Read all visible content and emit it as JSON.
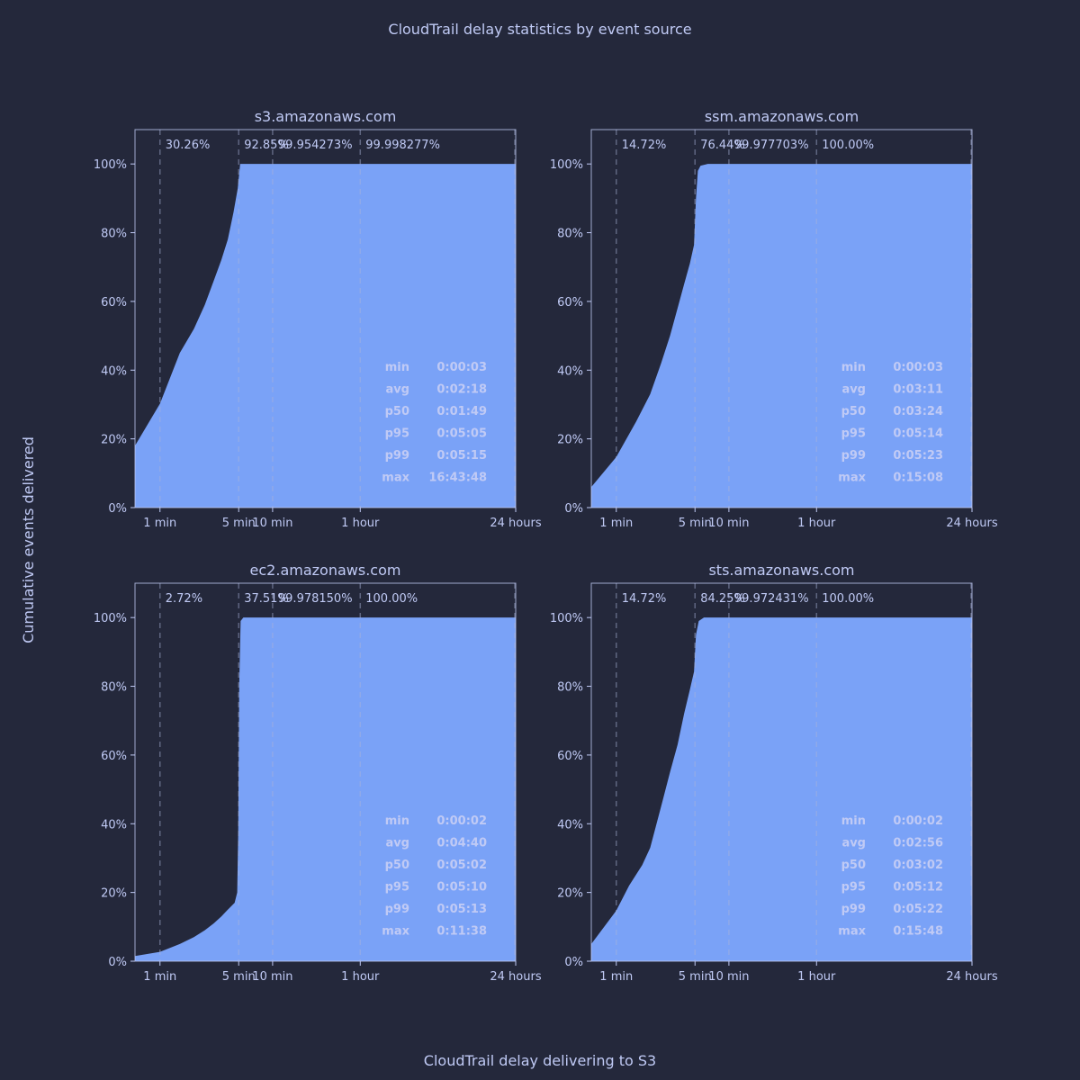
{
  "title": "CloudTrail delay statistics by event source",
  "xlabel": "CloudTrail delay delivering to S3",
  "ylabel": "Cumulative events delivered",
  "colors": {
    "background": "#24283b",
    "fill": "#7aa2f7",
    "text": "#c0caf5",
    "frame": "#c0caf5"
  },
  "chart_data": [
    {
      "type": "area",
      "title": "s3.amazonaws.com",
      "x_ticks": [
        "1 min",
        "5 min",
        "10 min",
        "1 hour",
        "24 hours"
      ],
      "y_ticks": [
        "0%",
        "20%",
        "40%",
        "60%",
        "80%",
        "100%"
      ],
      "ylim": [
        0,
        110
      ],
      "x_log_minutes": true,
      "threshold_minutes": [
        1,
        5,
        10,
        60
      ],
      "threshold_labels": [
        "30.26%",
        "92.85%",
        "99.954273%",
        "99.998277%"
      ],
      "curve": [
        [
          0.05,
          0
        ],
        [
          0.2,
          8
        ],
        [
          0.5,
          18
        ],
        [
          1,
          30.26
        ],
        [
          1.5,
          45
        ],
        [
          2,
          52
        ],
        [
          2.5,
          59
        ],
        [
          3,
          66
        ],
        [
          3.5,
          72
        ],
        [
          4,
          78
        ],
        [
          4.5,
          86
        ],
        [
          4.9,
          92.85
        ],
        [
          5.15,
          100
        ],
        [
          60,
          100
        ],
        [
          1440,
          100
        ]
      ],
      "stats": [
        {
          "key": "min",
          "value": "0:00:03"
        },
        {
          "key": "avg",
          "value": "0:02:18"
        },
        {
          "key": "p50",
          "value": "0:01:49"
        },
        {
          "key": "p95",
          "value": "0:05:05"
        },
        {
          "key": "p99",
          "value": "0:05:15"
        },
        {
          "key": "max",
          "value": "16:43:48"
        }
      ]
    },
    {
      "type": "area",
      "title": "ssm.amazonaws.com",
      "x_ticks": [
        "1 min",
        "5 min",
        "10 min",
        "1 hour",
        "24 hours"
      ],
      "y_ticks": [
        "0%",
        "20%",
        "40%",
        "60%",
        "80%",
        "100%"
      ],
      "ylim": [
        0,
        110
      ],
      "x_log_minutes": true,
      "threshold_minutes": [
        1,
        5,
        10,
        60
      ],
      "threshold_labels": [
        "14.72%",
        "76.44%",
        "99.977703%",
        "100.00%"
      ],
      "curve": [
        [
          0.05,
          0
        ],
        [
          0.5,
          6
        ],
        [
          1,
          14.72
        ],
        [
          1.5,
          25
        ],
        [
          2,
          33
        ],
        [
          2.5,
          42
        ],
        [
          3,
          50
        ],
        [
          3.5,
          58
        ],
        [
          4,
          65
        ],
        [
          4.5,
          71
        ],
        [
          4.9,
          76.44
        ],
        [
          5.1,
          90
        ],
        [
          5.3,
          98
        ],
        [
          5.6,
          99.5
        ],
        [
          6.5,
          100
        ],
        [
          60,
          100
        ],
        [
          1440,
          100
        ]
      ],
      "stats": [
        {
          "key": "min",
          "value": "0:00:03"
        },
        {
          "key": "avg",
          "value": "0:03:11"
        },
        {
          "key": "p50",
          "value": "0:03:24"
        },
        {
          "key": "p95",
          "value": "0:05:14"
        },
        {
          "key": "p99",
          "value": "0:05:23"
        },
        {
          "key": "max",
          "value": "0:15:08"
        }
      ]
    },
    {
      "type": "area",
      "title": "ec2.amazonaws.com",
      "x_ticks": [
        "1 min",
        "5 min",
        "10 min",
        "1 hour",
        "24 hours"
      ],
      "y_ticks": [
        "0%",
        "20%",
        "40%",
        "60%",
        "80%",
        "100%"
      ],
      "ylim": [
        0,
        110
      ],
      "x_log_minutes": true,
      "threshold_minutes": [
        1,
        5,
        10,
        60
      ],
      "threshold_labels": [
        "2.72%",
        "37.51%",
        "99.978150%",
        "100.00%"
      ],
      "curve": [
        [
          0.05,
          0
        ],
        [
          0.5,
          1.5
        ],
        [
          1,
          2.72
        ],
        [
          1.5,
          5
        ],
        [
          2,
          7
        ],
        [
          2.5,
          9
        ],
        [
          3,
          11
        ],
        [
          3.5,
          13
        ],
        [
          4,
          15
        ],
        [
          4.6,
          17
        ],
        [
          4.85,
          20
        ],
        [
          4.95,
          37.51
        ],
        [
          5.05,
          80
        ],
        [
          5.2,
          99
        ],
        [
          5.5,
          100
        ],
        [
          60,
          100
        ],
        [
          1440,
          100
        ]
      ],
      "stats": [
        {
          "key": "min",
          "value": "0:00:02"
        },
        {
          "key": "avg",
          "value": "0:04:40"
        },
        {
          "key": "p50",
          "value": "0:05:02"
        },
        {
          "key": "p95",
          "value": "0:05:10"
        },
        {
          "key": "p99",
          "value": "0:05:13"
        },
        {
          "key": "max",
          "value": "0:11:38"
        }
      ]
    },
    {
      "type": "area",
      "title": "sts.amazonaws.com",
      "x_ticks": [
        "1 min",
        "5 min",
        "10 min",
        "1 hour",
        "24 hours"
      ],
      "y_ticks": [
        "0%",
        "20%",
        "40%",
        "60%",
        "80%",
        "100%"
      ],
      "ylim": [
        0,
        110
      ],
      "x_log_minutes": true,
      "threshold_minutes": [
        1,
        5,
        10,
        60
      ],
      "threshold_labels": [
        "14.72%",
        "84.25%",
        "99.972431%",
        "100.00%"
      ],
      "curve": [
        [
          0.05,
          0
        ],
        [
          0.5,
          5
        ],
        [
          1,
          14.72
        ],
        [
          1.3,
          22
        ],
        [
          1.7,
          28
        ],
        [
          2,
          33
        ],
        [
          2.5,
          45
        ],
        [
          3,
          55
        ],
        [
          3.5,
          63
        ],
        [
          4,
          72
        ],
        [
          4.5,
          79
        ],
        [
          4.9,
          84.25
        ],
        [
          5.1,
          95
        ],
        [
          5.4,
          99
        ],
        [
          6,
          100
        ],
        [
          60,
          100
        ],
        [
          1440,
          100
        ]
      ],
      "stats": [
        {
          "key": "min",
          "value": "0:00:02"
        },
        {
          "key": "avg",
          "value": "0:02:56"
        },
        {
          "key": "p50",
          "value": "0:03:02"
        },
        {
          "key": "p95",
          "value": "0:05:12"
        },
        {
          "key": "p99",
          "value": "0:05:22"
        },
        {
          "key": "max",
          "value": "0:15:48"
        }
      ]
    }
  ]
}
